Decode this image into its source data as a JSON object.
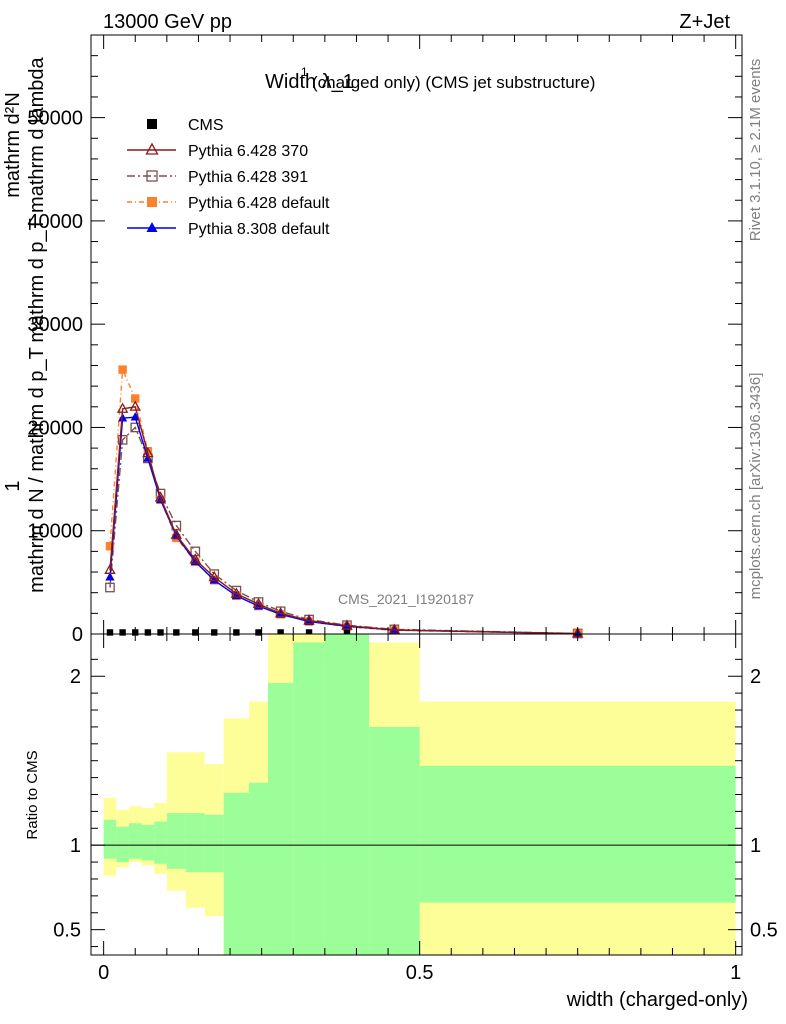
{
  "header": {
    "energy": "13000 GeV pp",
    "process": "Z+Jet"
  },
  "side_labels": {
    "rivet": "Rivet 3.1.10, ≥ 2.1M events",
    "mcplots": "mcplots.cern.ch [arXiv:1306.3436]"
  },
  "chart_data": {
    "type": "line",
    "title": "Width λ_1¹ (charged only) (CMS jet substructure)",
    "title_main": "Width λ_1",
    "title_sup": "1",
    "title_rest": "(charged only) (CMS jet substructure)",
    "watermark": "CMS_2021_I1920187",
    "ylabel_lines": [
      "1",
      "mathrm d N / mathrm d p_T",
      "mathrm d²N",
      "mathrm d p_T mathrm d lambda"
    ],
    "xlabel": "width (charged-only)",
    "ratio_ylabel": "Ratio to CMS",
    "xlim": [
      -0.02,
      1.01
    ],
    "ylim": [
      0,
      58000
    ],
    "ratio_ylim": [
      0.35,
      2.25
    ],
    "yticks": [
      "0",
      "10000",
      "20000",
      "30000",
      "40000",
      "50000"
    ],
    "ytick_values": [
      0,
      10000,
      20000,
      30000,
      40000,
      50000
    ],
    "xticks": [
      "0",
      "0.5",
      "1"
    ],
    "xtick_values": [
      0,
      0.5,
      1
    ],
    "ratio_yticks": [
      "0.5",
      "1",
      "2"
    ],
    "ratio_ytick_values": [
      0.5,
      1,
      2
    ],
    "legend": [
      "CMS",
      "Pythia 6.428 370",
      "Pythia 6.428 391",
      "Pythia 6.428 default",
      "Pythia 8.308 default"
    ],
    "bin_edges": [
      0,
      0.02,
      0.04,
      0.06,
      0.08,
      0.1,
      0.13,
      0.16,
      0.19,
      0.23,
      0.26,
      0.3,
      0.35,
      0.42,
      0.5,
      1.0
    ],
    "x": [
      0.01,
      0.03,
      0.05,
      0.07,
      0.09,
      0.115,
      0.145,
      0.175,
      0.21,
      0.245,
      0.28,
      0.325,
      0.385,
      0.46,
      0.75
    ],
    "series": [
      {
        "name": "CMS",
        "color": "#000000",
        "marker": "square",
        "values": [
          150,
          150,
          150,
          150,
          150,
          150,
          150,
          150,
          150,
          150,
          150,
          150,
          100,
          50,
          20
        ]
      },
      {
        "name": "Pythia 6.428 370",
        "color": "#8b1a1a",
        "marker": "open-triangle",
        "dash": "",
        "values": [
          6200,
          21800,
          22000,
          17500,
          13200,
          9600,
          7200,
          5500,
          3900,
          2900,
          2000,
          1300,
          800,
          400,
          40
        ]
      },
      {
        "name": "Pythia 6.428 391",
        "color": "#7f4f4f",
        "marker": "open-square",
        "dash": "8,3,2,3",
        "values": [
          4500,
          18800,
          20000,
          17000,
          13600,
          10500,
          8000,
          5800,
          4200,
          3100,
          2200,
          1400,
          850,
          450,
          50
        ]
      },
      {
        "name": "Pythia 6.428 default",
        "color": "#ff7f2a",
        "marker": "square",
        "dash": "5,3,1,3",
        "values": [
          8500,
          25600,
          22800,
          17700,
          13000,
          9300,
          7000,
          5200,
          3700,
          2700,
          1900,
          1200,
          700,
          350,
          30
        ]
      },
      {
        "name": "Pythia 8.308 default",
        "color": "#0000ee",
        "marker": "triangle",
        "dash": "",
        "values": [
          5500,
          20900,
          21000,
          17000,
          13000,
          9500,
          7000,
          5200,
          3700,
          2700,
          1900,
          1200,
          750,
          380,
          35
        ]
      }
    ],
    "ratio_bands": {
      "inner_low": [
        0.92,
        0.9,
        0.92,
        0.91,
        0.89,
        0.86,
        0.84,
        0.84,
        0.0,
        0.0,
        0.0,
        0.0,
        0.0,
        0.0,
        0.66
      ],
      "inner_high": [
        1.15,
        1.11,
        1.13,
        1.12,
        1.14,
        1.19,
        1.19,
        1.18,
        1.31,
        1.37,
        1.96,
        2.2,
        2.3,
        1.7,
        1.47
      ],
      "outer_low": [
        0.82,
        0.87,
        0.9,
        0.88,
        0.83,
        0.73,
        0.63,
        0.58,
        0.0,
        0.0,
        0.0,
        0.0,
        0.0,
        0.0,
        0.0
      ],
      "outer_high": [
        1.28,
        1.21,
        1.23,
        1.22,
        1.25,
        1.55,
        1.55,
        1.48,
        1.75,
        1.85,
        2.4,
        2.4,
        2.4,
        2.2,
        1.85
      ]
    },
    "colors": {
      "inner_band": "#9cfe98",
      "outer_band": "#fdfe98"
    }
  }
}
